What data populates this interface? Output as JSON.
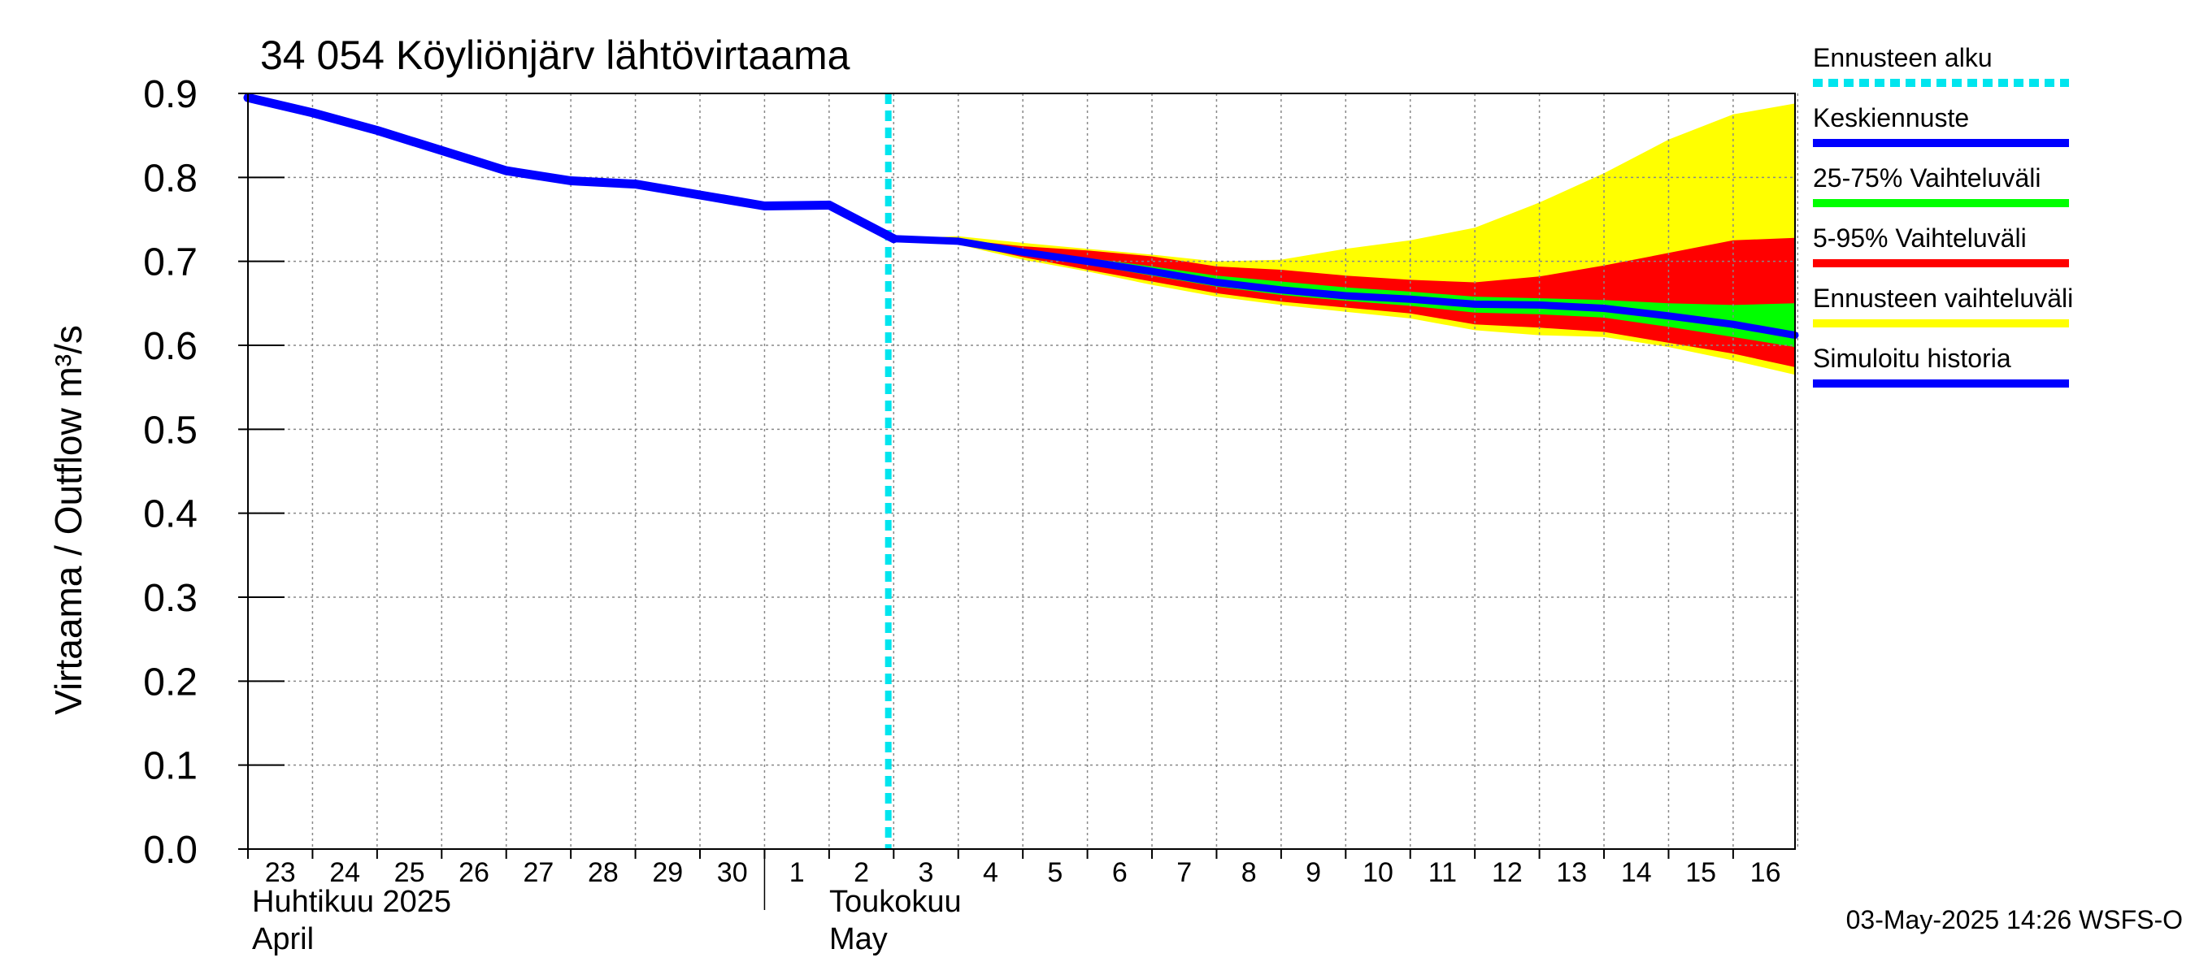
{
  "chart_data": {
    "type": "area",
    "title": "34 054 Köyliönjärv lähtövirtaama",
    "ylabel": "Virtaama / Outflow    m³/s",
    "ylim": [
      0,
      0.9
    ],
    "yticks": [
      "0.0",
      "0.1",
      "0.2",
      "0.3",
      "0.4",
      "0.5",
      "0.6",
      "0.7",
      "0.8",
      "0.9"
    ],
    "x_start": "2025-04-23",
    "x_end": "2025-05-16",
    "day_labels": [
      "23",
      "24",
      "25",
      "26",
      "27",
      "28",
      "29",
      "30",
      "1",
      "2",
      "3",
      "4",
      "5",
      "6",
      "7",
      "8",
      "9",
      "10",
      "11",
      "12",
      "13",
      "14",
      "15",
      "16"
    ],
    "month_labels": [
      {
        "fi": "Huhtikuu  2025",
        "en": "April"
      },
      {
        "fi": "Toukokuu",
        "en": "May"
      }
    ],
    "forecast_start": "2025-05-02T22:00",
    "series": [
      {
        "name": "Simuloitu historia",
        "color": "#0000ff",
        "points": [
          [
            "2025-04-23T00:00",
            0.895
          ],
          [
            "2025-04-24T00:00",
            0.877
          ],
          [
            "2025-04-25T00:00",
            0.856
          ],
          [
            "2025-04-26T00:00",
            0.832
          ],
          [
            "2025-04-27T00:00",
            0.808
          ],
          [
            "2025-04-28T00:00",
            0.796
          ],
          [
            "2025-04-29T00:00",
            0.792
          ],
          [
            "2025-04-30T00:00",
            0.779
          ],
          [
            "2025-05-01T00:00",
            0.766
          ],
          [
            "2025-05-02T00:00",
            0.767
          ],
          [
            "2025-05-03T00:00",
            0.727
          ]
        ]
      },
      {
        "name": "Keskiennuste",
        "color": "#0000ff",
        "points": [
          [
            "2025-05-03T00:00",
            0.727
          ],
          [
            "2025-05-04T00:00",
            0.724
          ],
          [
            "2025-05-05T00:00",
            0.711
          ],
          [
            "2025-05-06T00:00",
            0.7
          ],
          [
            "2025-05-07T00:00",
            0.688
          ],
          [
            "2025-05-08T00:00",
            0.675
          ],
          [
            "2025-05-09T00:00",
            0.666
          ],
          [
            "2025-05-10T00:00",
            0.659
          ],
          [
            "2025-05-11T00:00",
            0.655
          ],
          [
            "2025-05-12T00:00",
            0.649
          ],
          [
            "2025-05-13T00:00",
            0.648
          ],
          [
            "2025-05-14T00:00",
            0.644
          ],
          [
            "2025-05-15T00:00",
            0.635
          ],
          [
            "2025-05-16T00:00",
            0.625
          ],
          [
            "2025-05-16T23:00",
            0.612
          ]
        ]
      }
    ],
    "bands": [
      {
        "name": "Ennusteen vaihteluväli",
        "color": "#ffff00",
        "x": [
          "2025-05-03",
          "2025-05-04",
          "2025-05-05",
          "2025-05-06",
          "2025-05-07",
          "2025-05-08",
          "2025-05-09",
          "2025-05-10",
          "2025-05-11",
          "2025-05-12",
          "2025-05-13",
          "2025-05-14",
          "2025-05-15",
          "2025-05-16",
          "2025-05-16T23:00"
        ],
        "upper": [
          0.727,
          0.73,
          0.722,
          0.715,
          0.708,
          0.7,
          0.702,
          0.715,
          0.725,
          0.74,
          0.77,
          0.805,
          0.845,
          0.875,
          0.888
        ],
        "lower": [
          0.727,
          0.72,
          0.702,
          0.688,
          0.672,
          0.658,
          0.648,
          0.64,
          0.632,
          0.618,
          0.612,
          0.61,
          0.598,
          0.582,
          0.565
        ]
      },
      {
        "name": "5-95% Vaihteluväli",
        "color": "#ff0000",
        "x": [
          "2025-05-03",
          "2025-05-04",
          "2025-05-05",
          "2025-05-06",
          "2025-05-07",
          "2025-05-08",
          "2025-05-09",
          "2025-05-10",
          "2025-05-11",
          "2025-05-12",
          "2025-05-13",
          "2025-05-14",
          "2025-05-15",
          "2025-05-16",
          "2025-05-16T23:00"
        ],
        "upper": [
          0.727,
          0.726,
          0.718,
          0.713,
          0.706,
          0.694,
          0.69,
          0.683,
          0.678,
          0.675,
          0.682,
          0.695,
          0.71,
          0.725,
          0.728
        ],
        "lower": [
          0.727,
          0.722,
          0.705,
          0.69,
          0.676,
          0.662,
          0.652,
          0.645,
          0.638,
          0.625,
          0.621,
          0.616,
          0.603,
          0.59,
          0.574
        ]
      },
      {
        "name": "25-75% Vaihteluväli",
        "color": "#00ff00",
        "x": [
          "2025-05-03",
          "2025-05-04",
          "2025-05-05",
          "2025-05-06",
          "2025-05-07",
          "2025-05-08",
          "2025-05-09",
          "2025-05-10",
          "2025-05-11",
          "2025-05-12",
          "2025-05-13",
          "2025-05-14",
          "2025-05-15",
          "2025-05-16",
          "2025-05-16T23:00"
        ],
        "upper": [
          0.727,
          0.725,
          0.714,
          0.704,
          0.694,
          0.683,
          0.676,
          0.669,
          0.664,
          0.658,
          0.656,
          0.654,
          0.65,
          0.648,
          0.65
        ],
        "lower": [
          0.727,
          0.723,
          0.708,
          0.696,
          0.683,
          0.67,
          0.66,
          0.653,
          0.647,
          0.639,
          0.637,
          0.633,
          0.622,
          0.61,
          0.598
        ]
      }
    ],
    "legend": [
      {
        "label": "Ennusteen alku",
        "color": "#00e5ee",
        "style": "dotted"
      },
      {
        "label": "Keskiennuste",
        "color": "#0000ff",
        "style": "solid"
      },
      {
        "label": "25-75% Vaihteluväli",
        "color": "#00ff00",
        "style": "solid"
      },
      {
        "label": "5-95% Vaihteluväli",
        "color": "#ff0000",
        "style": "solid"
      },
      {
        "label": "Ennusteen vaihteluväli",
        "color": "#ffff00",
        "style": "solid"
      },
      {
        "label": "Simuloitu historia",
        "color": "#0000ff",
        "style": "solid"
      }
    ],
    "legend_position": "right",
    "grid": true,
    "footer": "03-May-2025 14:26 WSFS-O"
  }
}
